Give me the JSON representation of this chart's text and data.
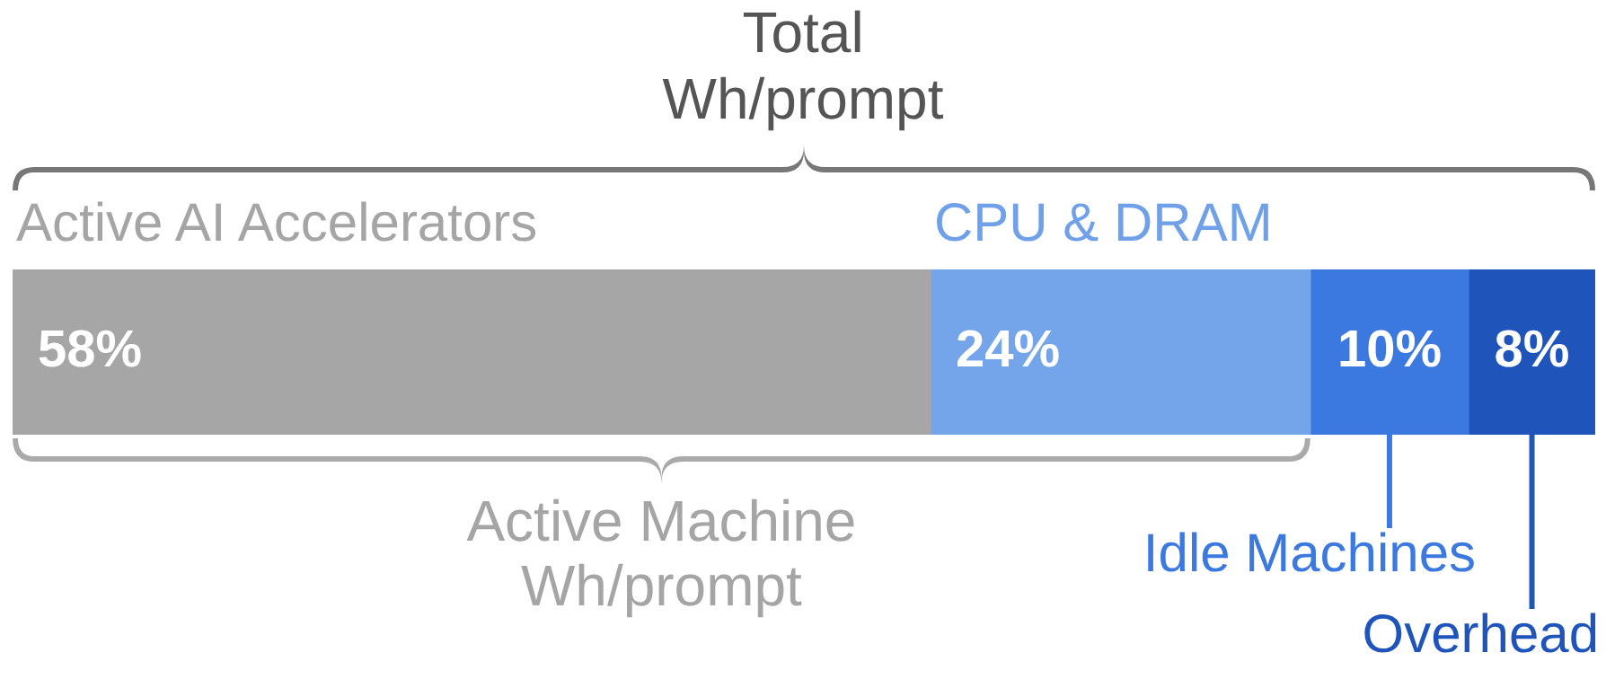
{
  "chart_data": {
    "type": "bar",
    "orientation": "horizontal",
    "stacked": true,
    "title": "Total Wh/prompt",
    "annotations": [
      "Active Machine Wh/prompt"
    ],
    "categories": [
      null
    ],
    "series": [
      {
        "name": "Active AI Accelerators",
        "color": "#a7a6a7",
        "values": [
          58
        ],
        "value_labels": [
          "58%"
        ]
      },
      {
        "name": "CPU & DRAM",
        "color": "#74a4e9",
        "values": [
          24
        ],
        "value_labels": [
          "24%"
        ]
      },
      {
        "name": "Idle Machines",
        "color": "#3b78e0",
        "values": [
          10
        ],
        "value_labels": [
          "10%"
        ]
      },
      {
        "name": "Overhead",
        "color": "#1f55bb",
        "values": [
          8
        ],
        "value_labels": [
          "8%"
        ]
      }
    ]
  }
}
